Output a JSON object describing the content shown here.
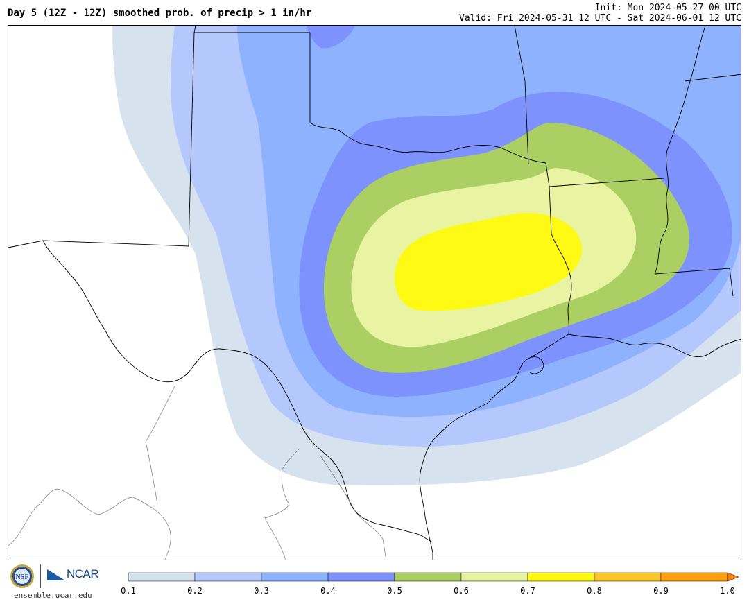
{
  "header": {
    "title": "Day 5 (12Z - 12Z) smoothed prob. of precip > 1 in/hr",
    "init": "Init: Mon 2024-05-27 00 UTC",
    "valid": "Valid: Fri 2024-05-31 12 UTC - Sat 2024-06-01 12 UTC"
  },
  "map": {
    "field": "smoothed probability of precipitation > 1 in/hr",
    "contour_levels": [
      0.1,
      0.2,
      0.3,
      0.4,
      0.5,
      0.6,
      0.7
    ],
    "fill_colors": {
      "0.1": "#d6e2ee",
      "0.2": "#b4c8fe",
      "0.3": "#8fb2fe",
      "0.4": "#7d92fd",
      "0.5": "#abcf63",
      "0.6": "#e8f4a1",
      "0.7": "#fefa13"
    },
    "boundary_color": "#000000"
  },
  "colorbar": {
    "tick_labels": [
      "0.1",
      "0.2",
      "0.3",
      "0.4",
      "0.5",
      "0.6",
      "0.7",
      "0.8",
      "0.9",
      "1.0"
    ],
    "colors": [
      "#d6e2ee",
      "#b4c8fe",
      "#8fb2fe",
      "#7d92fd",
      "#abcf63",
      "#e8f4a1",
      "#fefa13",
      "#fdc62e",
      "#fe9f0f"
    ],
    "extend_color": "#fe7f07"
  },
  "footer": {
    "nsf_logo_text": "NSF",
    "ncar_logo_text": "NCAR",
    "site": "ensemble.ucar.edu"
  }
}
